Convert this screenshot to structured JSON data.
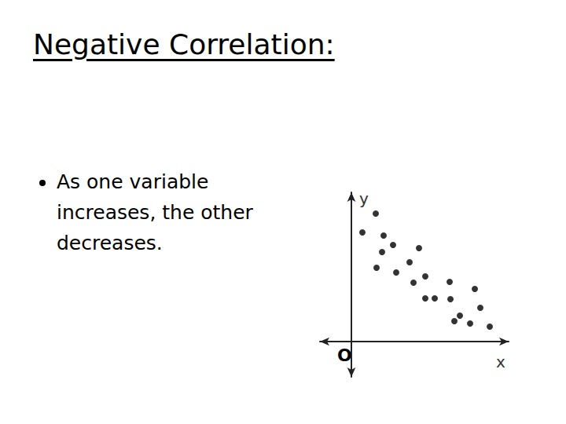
{
  "slide": {
    "title": "Negative Correlation:",
    "bullets": [
      "As one variable increases, the other decreases."
    ]
  },
  "chart_data": {
    "type": "scatter",
    "x_label": "x",
    "y_label": "y",
    "annotations": [
      "O"
    ],
    "x": [
      3.1,
      1.4,
      4.1,
      5.3,
      3.9,
      8.6,
      7.4,
      3.2,
      5.7,
      9.4,
      7.9,
      12.5,
      15.7,
      9.4,
      10.6,
      12.6,
      16.4,
      13.8,
      13.1,
      15.1,
      17.6
    ],
    "values": [
      16.3,
      13.9,
      13.5,
      12.3,
      11.4,
      11.9,
      10.1,
      9.4,
      8.8,
      8.3,
      7.5,
      7.6,
      6.7,
      5.5,
      5.5,
      5.4,
      4.3,
      3.3,
      2.6,
      2.3,
      1.9
    ],
    "color": "#000000",
    "marker": "circle",
    "xlim": [
      -4,
      20
    ],
    "ylim": [
      -4.5,
      19
    ],
    "tick_labels": false,
    "grid": false
  }
}
